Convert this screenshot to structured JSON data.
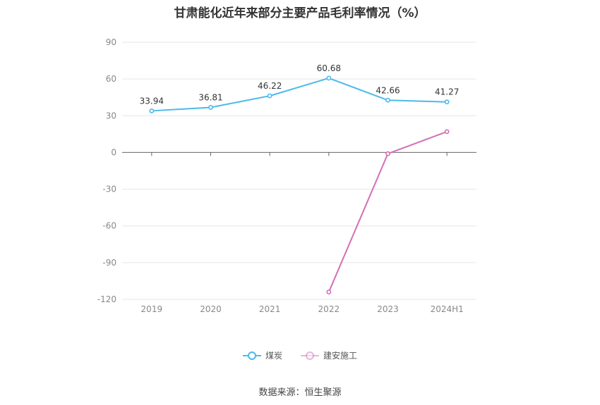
{
  "chart_data": {
    "type": "line",
    "title": "甘肃能化近年来部分主要产品毛利率情况（%）",
    "xlabel": "",
    "ylabel": "",
    "categories": [
      "2019",
      "2020",
      "2021",
      "2022",
      "2023",
      "2024H1"
    ],
    "ylim": [
      -120,
      90
    ],
    "yticks": [
      90,
      60,
      30,
      0,
      -30,
      -60,
      -90,
      -120
    ],
    "grid": true,
    "legend_position": "bottom-center",
    "series": [
      {
        "name": "煤炭",
        "color": "#4cb9ea",
        "values": [
          33.94,
          36.81,
          46.22,
          60.68,
          42.66,
          41.27
        ],
        "labels": [
          "33.94",
          "36.81",
          "46.22",
          "60.68",
          "42.66",
          "41.27"
        ]
      },
      {
        "name": "建安施工",
        "color": "#d46fb4",
        "values": [
          null,
          null,
          null,
          -114.0,
          -1.0,
          17.0
        ],
        "labels": []
      }
    ]
  },
  "source_text": "数据来源：恒生聚源"
}
